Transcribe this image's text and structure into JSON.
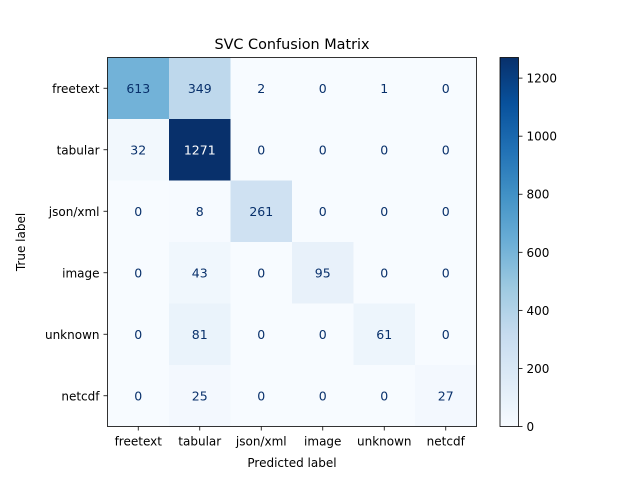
{
  "chart_data": {
    "type": "heatmap",
    "title": "SVC Confusion Matrix",
    "xlabel": "Predicted label",
    "ylabel": "True label",
    "x_categories": [
      "freetext",
      "tabular",
      "json/xml",
      "image",
      "unknown",
      "netcdf"
    ],
    "y_categories": [
      "freetext",
      "tabular",
      "json/xml",
      "image",
      "unknown",
      "netcdf"
    ],
    "values": [
      [
        613,
        349,
        2,
        0,
        1,
        0
      ],
      [
        32,
        1271,
        0,
        0,
        0,
        0
      ],
      [
        0,
        8,
        261,
        0,
        0,
        0
      ],
      [
        0,
        43,
        0,
        95,
        0,
        0
      ],
      [
        0,
        81,
        0,
        0,
        61,
        0
      ],
      [
        0,
        25,
        0,
        0,
        0,
        27
      ]
    ],
    "colormap": "Blues",
    "colorbar": {
      "range": [
        0,
        1271
      ],
      "ticks": [
        0,
        200,
        400,
        600,
        800,
        1000,
        1200
      ]
    }
  }
}
